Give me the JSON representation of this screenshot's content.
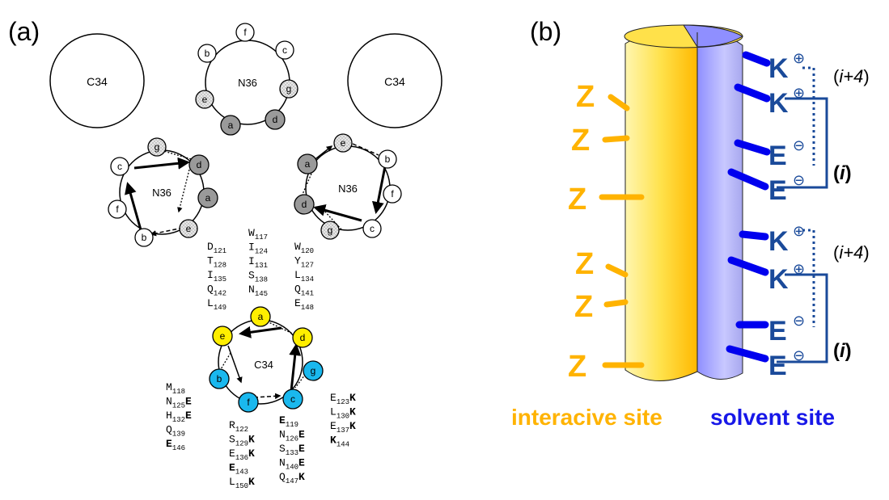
{
  "panel_a": {
    "label": "(a)",
    "big_circle_label": "C34",
    "top_wheel_label": "N36",
    "left_wheel_label": "N36",
    "right_wheel_label": "N36",
    "c34_wheel_label": "C34",
    "pos": {
      "a": "a",
      "b": "b",
      "c": "c",
      "d": "d",
      "e": "e",
      "f": "f",
      "g": "g"
    },
    "residues": {
      "a_col": [
        [
          "W",
          "117"
        ],
        [
          "I",
          "124"
        ],
        [
          "I",
          "131"
        ],
        [
          "S",
          "138"
        ],
        [
          "N",
          "145"
        ]
      ],
      "e_col": [
        [
          "D",
          "121"
        ],
        [
          "T",
          "128"
        ],
        [
          "I",
          "135"
        ],
        [
          "Q",
          "142"
        ],
        [
          "L",
          "149"
        ]
      ],
      "d_col": [
        [
          "W",
          "120"
        ],
        [
          "Y",
          "127"
        ],
        [
          "L",
          "134"
        ],
        [
          "Q",
          "141"
        ],
        [
          "E",
          "148"
        ]
      ],
      "g_col": [
        [
          "E",
          "123",
          "K"
        ],
        [
          "L",
          "130",
          "K"
        ],
        [
          "E",
          "137",
          "K"
        ],
        [
          "K",
          "144",
          ""
        ]
      ],
      "b_col": [
        [
          "M",
          "118",
          ""
        ],
        [
          "N",
          "125",
          "E"
        ],
        [
          "H",
          "132",
          "E"
        ],
        [
          "Q",
          "139",
          ""
        ],
        [
          "E",
          "146",
          ""
        ]
      ],
      "f_col": [
        [
          "R",
          "122",
          ""
        ],
        [
          "S",
          "129",
          "K"
        ],
        [
          "E",
          "136",
          "K"
        ],
        [
          "E",
          "143",
          ""
        ],
        [
          "L",
          "150",
          "K"
        ]
      ],
      "c_col": [
        [
          "E",
          "119",
          ""
        ],
        [
          "N",
          "126",
          "E"
        ],
        [
          "S",
          "133",
          "E"
        ],
        [
          "N",
          "140",
          "E"
        ],
        [
          "Q",
          "147",
          "K"
        ]
      ]
    }
  },
  "panel_b": {
    "label": "(b)",
    "z": "Z",
    "interactive_label": "interacive site",
    "solvent_label": "solvent site",
    "charged": [
      {
        "res": "K",
        "charge": "⊕"
      },
      {
        "res": "K",
        "charge": "⊕"
      },
      {
        "res": "E",
        "charge": "⊖"
      },
      {
        "res": "E",
        "charge": "⊖"
      },
      {
        "res": "K",
        "charge": "⊕"
      },
      {
        "res": "K",
        "charge": "⊕"
      },
      {
        "res": "E",
        "charge": "⊖"
      },
      {
        "res": "E",
        "charge": "⊖"
      }
    ],
    "i4_label": "(i+4)",
    "i4_plain": "(",
    "i4_italic": "i+4",
    "i4_close": ")",
    "i_open": "(",
    "i_italic": "i",
    "i_close": ")",
    "colors": {
      "yellow": "#ffd700",
      "orange": "#ffb300",
      "blue": "#0000ee",
      "navy": "#1a4a9a",
      "cyan": "#1ab8ee",
      "gray": "#9a9a9a"
    }
  }
}
